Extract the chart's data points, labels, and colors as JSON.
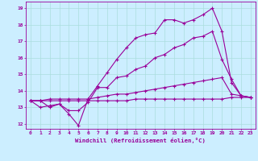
{
  "xlabel": "Windchill (Refroidissement éolien,°C)",
  "background_color": "#cceeff",
  "grid_color": "#aadddd",
  "line_color": "#990099",
  "xlim": [
    -0.5,
    23.5
  ],
  "ylim": [
    11.7,
    19.4
  ],
  "xticks": [
    0,
    1,
    2,
    3,
    4,
    5,
    6,
    7,
    8,
    9,
    10,
    11,
    12,
    13,
    14,
    15,
    16,
    17,
    18,
    19,
    20,
    21,
    22,
    23
  ],
  "yticks": [
    12,
    13,
    14,
    15,
    16,
    17,
    18,
    19
  ],
  "series": [
    {
      "x": [
        0,
        1,
        2,
        3,
        4,
        5,
        6,
        7,
        8,
        9,
        10,
        11,
        12,
        13,
        14,
        15,
        16,
        17,
        18,
        19,
        20,
        21,
        22,
        23
      ],
      "y": [
        13.4,
        13.4,
        13.0,
        13.2,
        12.6,
        11.9,
        13.5,
        14.3,
        15.1,
        15.9,
        16.6,
        17.2,
        17.4,
        17.5,
        18.3,
        18.3,
        18.1,
        18.3,
        18.6,
        19.0,
        17.6,
        14.5,
        13.7,
        13.6
      ]
    },
    {
      "x": [
        0,
        1,
        2,
        3,
        4,
        5,
        6,
        7,
        8,
        9,
        10,
        11,
        12,
        13,
        14,
        15,
        16,
        17,
        18,
        19,
        20,
        21,
        22,
        23
      ],
      "y": [
        13.4,
        13.0,
        13.1,
        13.2,
        12.8,
        12.8,
        13.3,
        14.2,
        14.2,
        14.8,
        14.9,
        15.3,
        15.5,
        16.0,
        16.2,
        16.6,
        16.8,
        17.2,
        17.3,
        17.6,
        15.9,
        14.7,
        13.7,
        13.6
      ]
    },
    {
      "x": [
        0,
        1,
        2,
        3,
        4,
        5,
        6,
        7,
        8,
        9,
        10,
        11,
        12,
        13,
        14,
        15,
        16,
        17,
        18,
        19,
        20,
        21,
        22,
        23
      ],
      "y": [
        13.4,
        13.4,
        13.4,
        13.4,
        13.4,
        13.4,
        13.4,
        13.4,
        13.4,
        13.4,
        13.4,
        13.5,
        13.5,
        13.5,
        13.5,
        13.5,
        13.5,
        13.5,
        13.5,
        13.5,
        13.5,
        13.6,
        13.6,
        13.6
      ]
    },
    {
      "x": [
        0,
        1,
        2,
        3,
        4,
        5,
        6,
        7,
        8,
        9,
        10,
        11,
        12,
        13,
        14,
        15,
        16,
        17,
        18,
        19,
        20,
        21,
        22,
        23
      ],
      "y": [
        13.4,
        13.4,
        13.5,
        13.5,
        13.5,
        13.5,
        13.5,
        13.6,
        13.7,
        13.8,
        13.8,
        13.9,
        14.0,
        14.1,
        14.2,
        14.3,
        14.4,
        14.5,
        14.6,
        14.7,
        14.8,
        13.8,
        13.7,
        13.6
      ]
    }
  ]
}
